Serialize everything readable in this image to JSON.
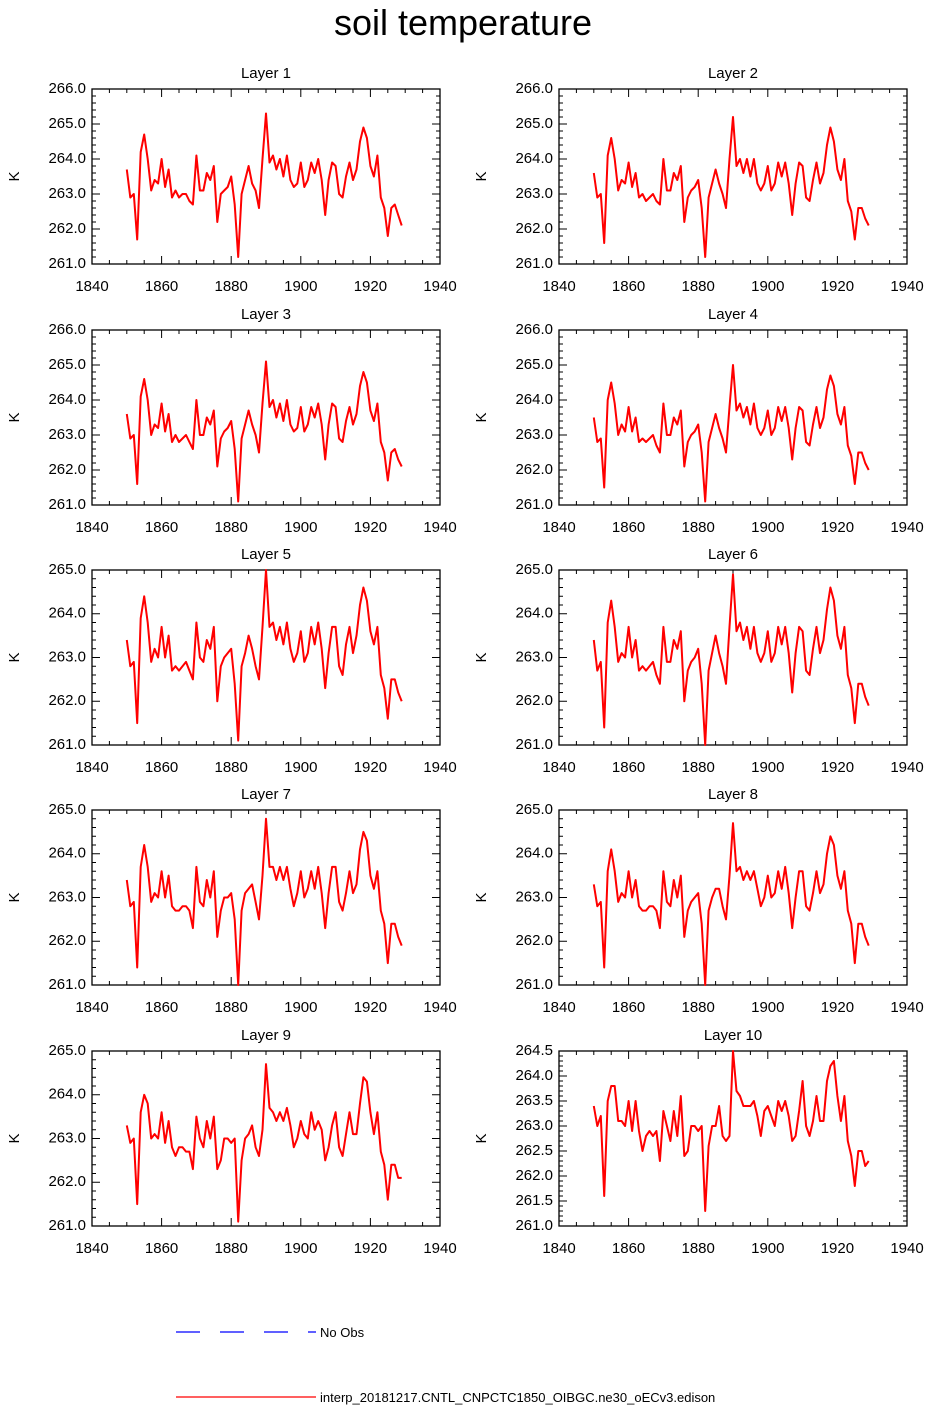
{
  "title": "soil temperature",
  "colors": {
    "model": "#ff0000",
    "obs": "#0000ff"
  },
  "legend": {
    "obs_label": "No Obs",
    "model_label": "interp_20181217.CNTL_CNPCTC1850_OIBGC.ne30_oECv3.edison"
  },
  "chart_data": [
    {
      "type": "line",
      "title": "Layer 1",
      "ylabel": "K",
      "xlim": [
        1840,
        1940
      ],
      "ylim": [
        261,
        266
      ],
      "xticks": [
        "1840",
        "1860",
        "1880",
        "1900",
        "1920",
        "1940"
      ],
      "yticks": [
        "261.0",
        "262.0",
        "263.0",
        "264.0",
        "265.0",
        "266.0"
      ],
      "x_start": 1850,
      "values": [
        263.7,
        262.9,
        263.0,
        261.7,
        264.2,
        264.7,
        264.0,
        263.1,
        263.4,
        263.3,
        264.0,
        263.2,
        263.7,
        262.9,
        263.1,
        262.9,
        263.0,
        263.0,
        262.8,
        262.7,
        264.1,
        263.1,
        263.1,
        263.6,
        263.4,
        263.8,
        262.2,
        263.0,
        263.1,
        263.2,
        263.5,
        262.7,
        261.2,
        263.0,
        263.4,
        263.8,
        263.3,
        263.1,
        262.6,
        264.0,
        265.3,
        263.9,
        264.1,
        263.7,
        264.0,
        263.5,
        264.1,
        263.4,
        263.2,
        263.3,
        263.9,
        263.2,
        263.4,
        263.9,
        263.6,
        264.0,
        263.4,
        262.4,
        263.4,
        263.9,
        263.8,
        263.0,
        262.9,
        263.5,
        263.9,
        263.4,
        263.7,
        264.5,
        264.9,
        264.6,
        263.8,
        263.5,
        264.1,
        262.9,
        262.6,
        261.8,
        262.6,
        262.7,
        262.4,
        262.1
      ]
    },
    {
      "type": "line",
      "title": "Layer 2",
      "ylabel": "K",
      "xlim": [
        1840,
        1940
      ],
      "ylim": [
        261,
        266
      ],
      "xticks": [
        "1840",
        "1860",
        "1880",
        "1900",
        "1920",
        "1940"
      ],
      "yticks": [
        "261.0",
        "262.0",
        "263.0",
        "264.0",
        "265.0",
        "266.0"
      ],
      "x_start": 1850,
      "values": [
        263.6,
        262.9,
        263.0,
        261.6,
        264.1,
        264.6,
        264.0,
        263.1,
        263.4,
        263.3,
        263.9,
        263.2,
        263.6,
        262.9,
        263.0,
        262.8,
        262.9,
        263.0,
        262.8,
        262.7,
        264.0,
        263.1,
        263.1,
        263.6,
        263.4,
        263.8,
        262.2,
        262.9,
        263.1,
        263.2,
        263.4,
        262.6,
        261.2,
        262.9,
        263.3,
        263.7,
        263.3,
        263.0,
        262.6,
        264.0,
        265.2,
        263.8,
        264.0,
        263.6,
        264.0,
        263.5,
        264.0,
        263.3,
        263.1,
        263.3,
        263.8,
        263.1,
        263.3,
        263.9,
        263.5,
        263.9,
        263.3,
        262.4,
        263.3,
        263.9,
        263.8,
        262.9,
        262.8,
        263.4,
        263.9,
        263.3,
        263.6,
        264.4,
        264.9,
        264.5,
        263.7,
        263.4,
        264.0,
        262.8,
        262.5,
        261.7,
        262.6,
        262.6,
        262.3,
        262.1
      ]
    },
    {
      "type": "line",
      "title": "Layer 3",
      "ylabel": "K",
      "xlim": [
        1840,
        1940
      ],
      "ylim": [
        261,
        266
      ],
      "xticks": [
        "1840",
        "1860",
        "1880",
        "1900",
        "1920",
        "1940"
      ],
      "yticks": [
        "261.0",
        "262.0",
        "263.0",
        "264.0",
        "265.0",
        "266.0"
      ],
      "x_start": 1850,
      "values": [
        263.6,
        262.9,
        263.0,
        261.6,
        264.1,
        264.6,
        264.0,
        263.0,
        263.3,
        263.2,
        263.9,
        263.1,
        263.6,
        262.8,
        263.0,
        262.8,
        262.9,
        263.0,
        262.8,
        262.6,
        264.0,
        263.0,
        263.0,
        263.5,
        263.3,
        263.7,
        262.1,
        262.9,
        263.1,
        263.2,
        263.4,
        262.6,
        261.1,
        262.9,
        263.3,
        263.7,
        263.3,
        263.0,
        262.5,
        263.9,
        265.1,
        263.8,
        264.0,
        263.5,
        263.9,
        263.4,
        264.0,
        263.3,
        263.1,
        263.2,
        263.8,
        263.1,
        263.3,
        263.8,
        263.5,
        263.9,
        263.3,
        262.3,
        263.3,
        263.9,
        263.8,
        262.9,
        262.8,
        263.4,
        263.8,
        263.3,
        263.6,
        264.4,
        264.8,
        264.5,
        263.7,
        263.4,
        263.9,
        262.8,
        262.5,
        261.7,
        262.5,
        262.6,
        262.3,
        262.1
      ]
    },
    {
      "type": "line",
      "title": "Layer 4",
      "ylabel": "K",
      "xlim": [
        1840,
        1940
      ],
      "ylim": [
        261,
        266
      ],
      "xticks": [
        "1840",
        "1860",
        "1880",
        "1900",
        "1920",
        "1940"
      ],
      "yticks": [
        "261.0",
        "262.0",
        "263.0",
        "264.0",
        "265.0",
        "266.0"
      ],
      "x_start": 1850,
      "values": [
        263.5,
        262.8,
        262.9,
        261.5,
        264.0,
        264.5,
        263.9,
        263.0,
        263.3,
        263.1,
        263.8,
        263.1,
        263.5,
        262.8,
        262.9,
        262.8,
        262.9,
        263.0,
        262.7,
        262.5,
        263.9,
        263.0,
        263.0,
        263.5,
        263.3,
        263.7,
        262.1,
        262.8,
        263.0,
        263.1,
        263.3,
        262.5,
        261.1,
        262.8,
        263.2,
        263.6,
        263.2,
        262.9,
        262.5,
        263.8,
        265.0,
        263.7,
        263.9,
        263.5,
        263.8,
        263.3,
        263.9,
        263.2,
        263.0,
        263.2,
        263.7,
        263.0,
        263.2,
        263.8,
        263.4,
        263.8,
        263.2,
        262.3,
        263.2,
        263.8,
        263.7,
        262.8,
        262.7,
        263.3,
        263.8,
        263.2,
        263.5,
        264.3,
        264.7,
        264.4,
        263.6,
        263.3,
        263.8,
        262.7,
        262.4,
        261.6,
        262.5,
        262.5,
        262.2,
        262.0
      ]
    },
    {
      "type": "line",
      "title": "Layer 5",
      "ylabel": "K",
      "xlim": [
        1840,
        1940
      ],
      "ylim": [
        261,
        265
      ],
      "xticks": [
        "1840",
        "1860",
        "1880",
        "1900",
        "1920",
        "1940"
      ],
      "yticks": [
        "261.0",
        "262.0",
        "263.0",
        "264.0",
        "265.0"
      ],
      "x_start": 1850,
      "values": [
        263.4,
        262.8,
        262.9,
        261.5,
        263.9,
        264.4,
        263.8,
        262.9,
        263.2,
        263.0,
        263.7,
        263.0,
        263.5,
        262.7,
        262.8,
        262.7,
        262.8,
        262.9,
        262.7,
        262.5,
        263.8,
        263.0,
        262.9,
        263.4,
        263.2,
        263.7,
        262.0,
        262.8,
        263.0,
        263.1,
        263.2,
        262.4,
        261.1,
        262.8,
        263.1,
        263.5,
        263.2,
        262.8,
        262.5,
        263.7,
        265.0,
        263.7,
        263.8,
        263.4,
        263.7,
        263.3,
        263.8,
        263.2,
        262.9,
        263.1,
        263.6,
        262.9,
        263.1,
        263.7,
        263.3,
        263.8,
        263.2,
        262.3,
        263.1,
        263.7,
        263.7,
        262.8,
        262.6,
        263.3,
        263.7,
        263.1,
        263.5,
        264.2,
        264.6,
        264.3,
        263.6,
        263.3,
        263.7,
        262.6,
        262.3,
        261.6,
        262.5,
        262.5,
        262.2,
        262.0
      ]
    },
    {
      "type": "line",
      "title": "Layer 6",
      "ylabel": "K",
      "xlim": [
        1840,
        1940
      ],
      "ylim": [
        261,
        265
      ],
      "xticks": [
        "1840",
        "1860",
        "1880",
        "1900",
        "1920",
        "1940"
      ],
      "yticks": [
        "261.0",
        "262.0",
        "263.0",
        "264.0",
        "265.0"
      ],
      "x_start": 1850,
      "values": [
        263.4,
        262.7,
        262.9,
        261.4,
        263.8,
        264.3,
        263.7,
        262.9,
        263.1,
        263.0,
        263.7,
        263.0,
        263.4,
        262.7,
        262.8,
        262.7,
        262.8,
        262.9,
        262.6,
        262.4,
        263.7,
        262.9,
        262.9,
        263.4,
        263.2,
        263.6,
        262.0,
        262.7,
        262.9,
        263.0,
        263.2,
        262.4,
        261.0,
        262.7,
        263.1,
        263.5,
        263.1,
        262.8,
        262.4,
        263.7,
        264.9,
        263.6,
        263.8,
        263.4,
        263.7,
        263.2,
        263.7,
        263.1,
        262.9,
        263.1,
        263.6,
        262.9,
        263.1,
        263.7,
        263.3,
        263.7,
        263.1,
        262.2,
        263.1,
        263.7,
        263.6,
        262.7,
        262.6,
        263.2,
        263.7,
        263.1,
        263.4,
        264.1,
        264.6,
        264.3,
        263.5,
        263.2,
        263.7,
        262.6,
        262.3,
        261.5,
        262.4,
        262.4,
        262.1,
        261.9
      ]
    },
    {
      "type": "line",
      "title": "Layer 7",
      "ylabel": "K",
      "xlim": [
        1840,
        1940
      ],
      "ylim": [
        261,
        265
      ],
      "xticks": [
        "1840",
        "1860",
        "1880",
        "1900",
        "1920",
        "1940"
      ],
      "yticks": [
        "261.0",
        "262.0",
        "263.0",
        "264.0",
        "265.0"
      ],
      "x_start": 1850,
      "values": [
        263.4,
        262.8,
        262.9,
        261.4,
        263.7,
        264.2,
        263.7,
        262.9,
        263.1,
        263.0,
        263.6,
        263.0,
        263.5,
        262.8,
        262.7,
        262.7,
        262.8,
        262.8,
        262.7,
        262.3,
        263.7,
        262.9,
        262.8,
        263.4,
        263.0,
        263.6,
        262.1,
        262.7,
        263.0,
        263.0,
        263.1,
        262.5,
        261.0,
        262.7,
        263.1,
        263.2,
        263.3,
        262.9,
        262.5,
        263.5,
        264.8,
        263.7,
        263.7,
        263.4,
        263.7,
        263.4,
        263.7,
        263.2,
        262.8,
        263.1,
        263.6,
        263.0,
        263.2,
        263.6,
        263.2,
        263.7,
        263.1,
        262.3,
        263.1,
        263.7,
        263.7,
        262.9,
        262.7,
        263.1,
        263.6,
        263.1,
        263.3,
        264.1,
        264.5,
        264.3,
        263.5,
        263.2,
        263.6,
        262.7,
        262.4,
        261.5,
        262.4,
        262.4,
        262.1,
        261.9
      ]
    },
    {
      "type": "line",
      "title": "Layer 8",
      "ylabel": "K",
      "xlim": [
        1840,
        1940
      ],
      "ylim": [
        261,
        265
      ],
      "xticks": [
        "1840",
        "1860",
        "1880",
        "1900",
        "1920",
        "1940"
      ],
      "yticks": [
        "261.0",
        "262.0",
        "263.0",
        "264.0",
        "265.0"
      ],
      "x_start": 1850,
      "values": [
        263.3,
        262.8,
        262.9,
        261.4,
        263.6,
        264.1,
        263.6,
        262.9,
        263.1,
        263.0,
        263.6,
        263.0,
        263.4,
        262.8,
        262.7,
        262.7,
        262.8,
        262.8,
        262.7,
        262.3,
        263.6,
        262.9,
        262.8,
        263.4,
        263.0,
        263.5,
        262.1,
        262.7,
        262.9,
        263.0,
        263.1,
        262.4,
        261.0,
        262.7,
        263.0,
        263.2,
        263.2,
        262.8,
        262.5,
        263.5,
        264.7,
        263.6,
        263.7,
        263.4,
        263.6,
        263.4,
        263.6,
        263.2,
        262.8,
        263.0,
        263.5,
        263.0,
        263.1,
        263.6,
        263.2,
        263.7,
        263.1,
        262.3,
        263.0,
        263.6,
        263.6,
        262.8,
        262.7,
        263.1,
        263.6,
        263.1,
        263.3,
        264.0,
        264.4,
        264.2,
        263.5,
        263.2,
        263.6,
        262.7,
        262.4,
        261.5,
        262.4,
        262.4,
        262.1,
        261.9
      ]
    },
    {
      "type": "line",
      "title": "Layer 9",
      "ylabel": "K",
      "xlim": [
        1840,
        1940
      ],
      "ylim": [
        261,
        265
      ],
      "xticks": [
        "1840",
        "1860",
        "1880",
        "1900",
        "1920",
        "1940"
      ],
      "yticks": [
        "261.0",
        "262.0",
        "263.0",
        "264.0",
        "265.0"
      ],
      "x_start": 1850,
      "values": [
        263.3,
        262.9,
        263.0,
        261.5,
        263.6,
        264.0,
        263.8,
        263.0,
        263.1,
        263.0,
        263.6,
        262.9,
        263.4,
        262.8,
        262.6,
        262.8,
        262.8,
        262.7,
        262.7,
        262.3,
        263.5,
        263.0,
        262.8,
        263.4,
        263.0,
        263.5,
        262.3,
        262.5,
        263.0,
        263.0,
        262.9,
        263.0,
        261.1,
        262.5,
        263.0,
        263.1,
        263.3,
        262.8,
        262.6,
        263.2,
        264.7,
        263.7,
        263.6,
        263.4,
        263.6,
        263.4,
        263.7,
        263.3,
        262.8,
        263.0,
        263.4,
        263.1,
        263.0,
        263.6,
        263.2,
        263.4,
        263.2,
        262.5,
        262.8,
        263.3,
        263.6,
        262.8,
        262.6,
        263.1,
        263.6,
        263.1,
        263.1,
        263.8,
        264.4,
        264.3,
        263.6,
        263.1,
        263.6,
        262.7,
        262.4,
        261.6,
        262.4,
        262.4,
        262.1,
        262.1
      ]
    },
    {
      "type": "line",
      "title": "Layer 10",
      "ylabel": "K",
      "xlim": [
        1840,
        1940
      ],
      "ylim": [
        261,
        264.5
      ],
      "xticks": [
        "1840",
        "1860",
        "1880",
        "1900",
        "1920",
        "1940"
      ],
      "yticks": [
        "261.0",
        "261.5",
        "262.0",
        "262.5",
        "263.0",
        "263.5",
        "264.0",
        "264.5"
      ],
      "x_start": 1850,
      "values": [
        263.4,
        263.0,
        263.2,
        261.6,
        263.5,
        263.8,
        263.8,
        263.1,
        263.1,
        263.0,
        263.5,
        262.9,
        263.5,
        262.9,
        262.5,
        262.8,
        262.9,
        262.8,
        262.9,
        262.3,
        263.3,
        263.0,
        262.7,
        263.3,
        262.8,
        263.6,
        262.4,
        262.5,
        263.0,
        263.0,
        262.9,
        263.0,
        261.3,
        262.6,
        263.0,
        263.0,
        263.4,
        262.8,
        262.7,
        262.8,
        264.5,
        263.7,
        263.6,
        263.4,
        263.4,
        263.4,
        263.5,
        263.2,
        262.8,
        263.3,
        263.4,
        263.2,
        263.0,
        263.5,
        263.3,
        263.5,
        263.2,
        262.7,
        262.8,
        263.3,
        263.9,
        263.0,
        262.8,
        263.1,
        263.6,
        263.1,
        263.1,
        263.9,
        264.2,
        264.3,
        263.6,
        263.1,
        263.6,
        262.7,
        262.4,
        261.8,
        262.5,
        262.5,
        262.2,
        262.3
      ]
    }
  ]
}
